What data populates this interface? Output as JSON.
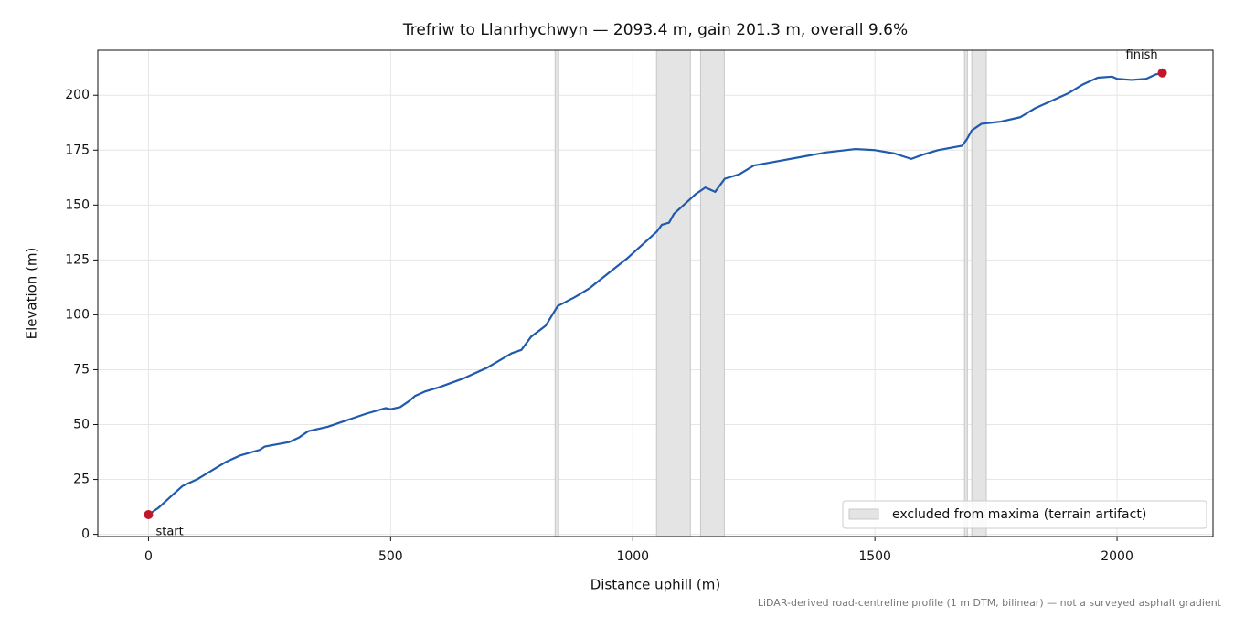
{
  "chart_data": {
    "type": "line",
    "title": "Trefriw to Llanrhychwyn — 2093.4 m, gain 201.3 m, overall 9.6%",
    "xlabel": "Distance uphill (m)",
    "ylabel": "Elevation (m)",
    "note": "LiDAR-derived road-centreline profile (1 m DTM, bilinear) — not a surveyed asphalt gradient",
    "xlim": [
      -104.67,
      2198.07
    ],
    "ylim": [
      -1,
      220.5
    ],
    "xticks": [
      0,
      500,
      1000,
      1500,
      2000
    ],
    "yticks": [
      0,
      25,
      50,
      75,
      100,
      125,
      150,
      175,
      200
    ],
    "grid": true,
    "legend": "lower right",
    "x": [
      0,
      20,
      50,
      70,
      100,
      130,
      160,
      190,
      230,
      240,
      290,
      310,
      330,
      370,
      410,
      450,
      490,
      500,
      520,
      540,
      550,
      570,
      600,
      650,
      700,
      750,
      770,
      790,
      820,
      845,
      880,
      910,
      950,
      990,
      1010,
      1030,
      1040,
      1050,
      1060,
      1075,
      1085,
      1110,
      1130,
      1150,
      1160,
      1170,
      1190,
      1220,
      1250,
      1300,
      1350,
      1400,
      1460,
      1500,
      1540,
      1575,
      1600,
      1630,
      1680,
      1690,
      1700,
      1720,
      1740,
      1760,
      1800,
      1830,
      1860,
      1900,
      1930,
      1960,
      1990,
      2000,
      2030,
      2060,
      2080,
      2093.4
    ],
    "series": [
      {
        "color": "#1f5aad",
        "values": [
          9,
          12,
          18,
          22,
          25,
          29,
          33,
          36,
          38.5,
          40,
          42,
          44,
          47,
          49,
          52,
          55,
          57.5,
          57,
          58,
          61,
          63,
          65,
          67,
          71,
          76,
          82.5,
          84,
          90,
          95,
          104,
          108,
          112,
          119,
          126,
          130,
          134,
          136,
          138,
          141,
          142,
          146,
          151,
          155,
          158,
          157,
          156,
          162,
          164,
          168,
          170,
          172,
          174,
          175.5,
          175,
          173.5,
          171,
          173,
          175,
          177,
          180,
          184,
          187,
          187.5,
          188,
          190,
          194,
          197,
          201,
          205,
          208,
          208.5,
          207.5,
          207,
          207.5,
          209.5,
          210.2
        ]
      }
    ],
    "spans": {
      "name": "excluded from maxima (terrain artifact)",
      "color": "#e4e4e4",
      "ranges": [
        [
          839.6,
          847
        ],
        [
          1049,
          1119
        ],
        [
          1140,
          1189
        ],
        [
          1685,
          1691
        ],
        [
          1700,
          1730
        ]
      ]
    },
    "markers": {
      "color": "#c0182b",
      "points": [
        {
          "label": "start",
          "x": 0,
          "y": 9
        },
        {
          "label": "finish",
          "x": 2093.4,
          "y": 210.2
        }
      ]
    }
  }
}
